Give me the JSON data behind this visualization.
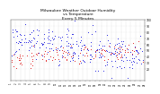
{
  "title": "Milwaukee Weather Outdoor Humidity\nvs Temperature\nEvery 5 Minutes",
  "title_fontsize": 3.2,
  "title_color": "#000000",
  "background_color": "#ffffff",
  "plot_bg_color": "#ffffff",
  "grid_color": "#999999",
  "dot_color_blue": "#0000dd",
  "dot_color_red": "#dd0000",
  "dot_size_blue": 0.35,
  "dot_size_red": 0.35,
  "xlim": [
    0,
    280
  ],
  "ylim": [
    0,
    100
  ],
  "right_ytick_labels": [
    "100",
    "90",
    "80",
    "70",
    "60",
    "50",
    "40",
    "30",
    "20"
  ],
  "right_ytick_values": [
    100,
    90,
    80,
    70,
    60,
    50,
    40,
    30,
    20
  ],
  "right_ytick_fontsize": 2.2,
  "xtick_fontsize": 1.8,
  "n_vert_grid": 28
}
